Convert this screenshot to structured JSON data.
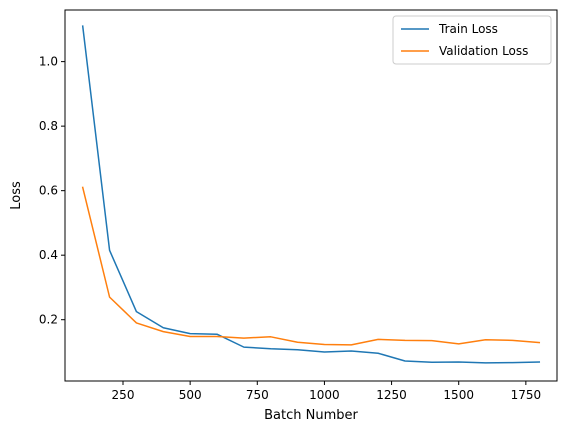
{
  "chart_data": {
    "type": "line",
    "title": "",
    "xlabel": "Batch Number",
    "ylabel": "Loss",
    "xlim": [
      34,
      1866
    ],
    "ylim": [
      0.01,
      1.16
    ],
    "xticks": [
      250,
      500,
      750,
      1000,
      1250,
      1500,
      1750
    ],
    "xtick_labels": [
      "250",
      "500",
      "750",
      "1000",
      "1250",
      "1500",
      "1750"
    ],
    "yticks": [
      0.2,
      0.4,
      0.6,
      0.8,
      1.0
    ],
    "ytick_labels": [
      "0.2",
      "0.4",
      "0.6",
      "0.8",
      "1.0"
    ],
    "grid": false,
    "legend_position": "top-right",
    "series": [
      {
        "name": "Train Loss",
        "color": "#1f77b4",
        "x": [
          100,
          200,
          300,
          400,
          500,
          600,
          700,
          800,
          900,
          1000,
          1100,
          1200,
          1300,
          1400,
          1500,
          1600,
          1700,
          1800
        ],
        "y": [
          1.11,
          0.415,
          0.225,
          0.175,
          0.157,
          0.155,
          0.115,
          0.11,
          0.107,
          0.1,
          0.103,
          0.096,
          0.072,
          0.068,
          0.069,
          0.066,
          0.067,
          0.069
        ]
      },
      {
        "name": "Validation Loss",
        "color": "#ff7f0e",
        "x": [
          100,
          200,
          300,
          400,
          500,
          600,
          700,
          800,
          900,
          1000,
          1100,
          1200,
          1300,
          1400,
          1500,
          1600,
          1700,
          1800
        ],
        "y": [
          0.61,
          0.27,
          0.19,
          0.163,
          0.148,
          0.148,
          0.143,
          0.147,
          0.13,
          0.123,
          0.122,
          0.139,
          0.136,
          0.135,
          0.125,
          0.138,
          0.136,
          0.129
        ]
      }
    ]
  }
}
